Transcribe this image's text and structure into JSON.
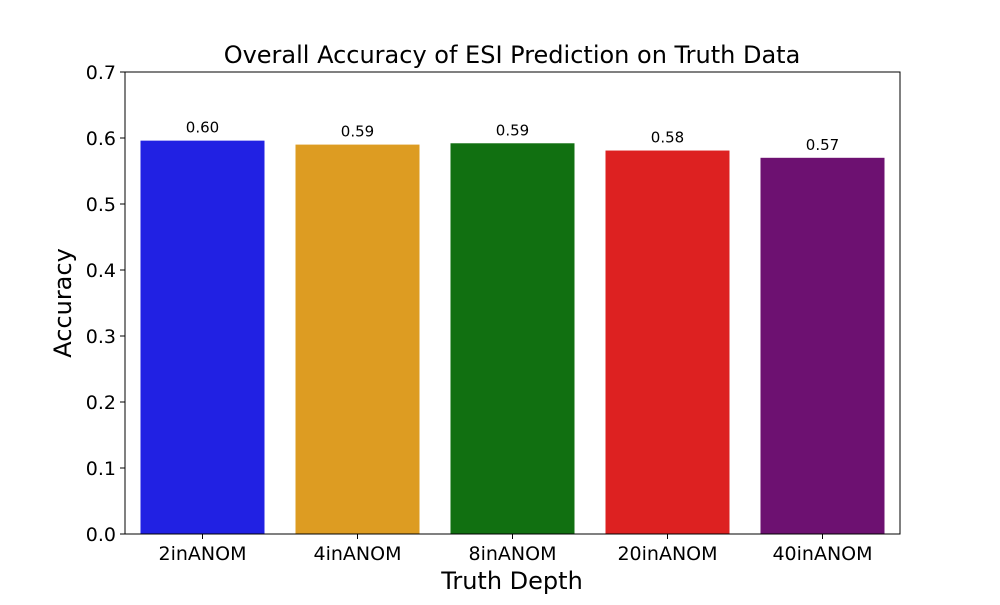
{
  "chart_data": {
    "type": "bar",
    "title": "Overall Accuracy of ESI Prediction on Truth Data",
    "xlabel": "Truth Depth",
    "ylabel": "Accuracy",
    "categories": [
      "2inANOM",
      "4inANOM",
      "8inANOM",
      "20inANOM",
      "40inANOM"
    ],
    "values": [
      0.596,
      0.59,
      0.592,
      0.581,
      0.57
    ],
    "data_labels": [
      "0.60",
      "0.59",
      "0.59",
      "0.58",
      "0.57"
    ],
    "colors": [
      "#2121e3",
      "#dd9c22",
      "#117011",
      "#dd2121",
      "#6d1171"
    ],
    "ylim": [
      0,
      0.7
    ],
    "yticks": [
      0.0,
      0.1,
      0.2,
      0.3,
      0.4,
      0.5,
      0.6,
      0.7
    ],
    "ytick_labels": [
      "0.0",
      "0.1",
      "0.2",
      "0.3",
      "0.4",
      "0.5",
      "0.6",
      "0.7"
    ],
    "grid": false,
    "legend": "none"
  }
}
